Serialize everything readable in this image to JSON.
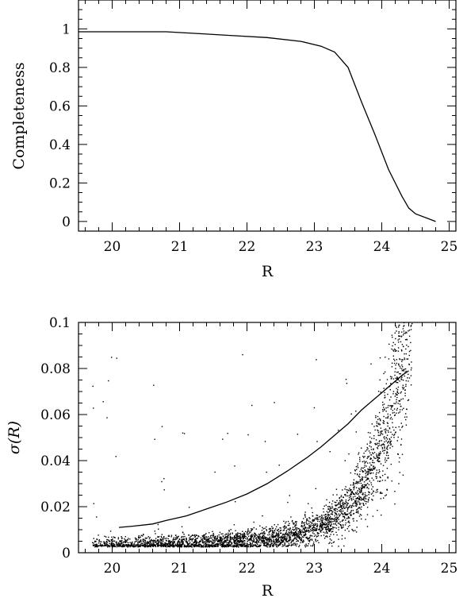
{
  "chart_data": [
    {
      "type": "line",
      "xlabel": "R",
      "ylabel": "Completeness",
      "xlim": [
        19.5,
        25.1
      ],
      "ylim": [
        -0.05,
        1.15
      ],
      "xticks_major": [
        20,
        21,
        22,
        23,
        24,
        25
      ],
      "xtick_labels": [
        "20",
        "21",
        "22",
        "23",
        "24",
        "25"
      ],
      "yticks_major": [
        0,
        0.2,
        0.4,
        0.6,
        0.8,
        1
      ],
      "ytick_labels": [
        "0",
        "0.2",
        "0.4",
        "0.6",
        "0.8",
        "1"
      ],
      "grid": false,
      "series": [
        {
          "x": [
            19.5,
            20.8,
            21.3,
            21.8,
            22.3,
            22.8,
            23.1,
            23.3,
            23.5,
            23.7,
            23.9,
            24.1,
            24.3,
            24.4,
            24.5,
            24.8
          ],
          "y": [
            0.985,
            0.985,
            0.975,
            0.965,
            0.955,
            0.935,
            0.91,
            0.88,
            0.8,
            0.62,
            0.45,
            0.27,
            0.13,
            0.07,
            0.04,
            0.0
          ]
        }
      ]
    },
    {
      "type": "scatter",
      "xlabel": "R",
      "ylabel": "σ(R)",
      "xlim": [
        19.5,
        25.1
      ],
      "ylim": [
        0,
        0.1
      ],
      "xticks_major": [
        20,
        21,
        22,
        23,
        24,
        25
      ],
      "xtick_labels": [
        "20",
        "21",
        "22",
        "23",
        "24",
        "25"
      ],
      "yticks_major": [
        0,
        0.02,
        0.04,
        0.06,
        0.08,
        0.1
      ],
      "ytick_labels": [
        "0",
        "0.02",
        "0.04",
        "0.06",
        "0.08",
        "0.1"
      ],
      "grid": false,
      "trend_line": {
        "x": [
          20.1,
          20.3,
          20.6,
          20.8,
          21.1,
          21.4,
          21.7,
          22.0,
          22.3,
          22.6,
          22.9,
          23.1,
          23.3,
          23.5,
          23.7,
          23.9,
          24.1,
          24.3,
          24.4
        ],
        "y": [
          0.011,
          0.0115,
          0.0125,
          0.014,
          0.016,
          0.019,
          0.022,
          0.0255,
          0.03,
          0.0355,
          0.0415,
          0.046,
          0.051,
          0.056,
          0.062,
          0.067,
          0.072,
          0.077,
          0.079
        ]
      },
      "points_description": "Several thousand scatter points; dense band rising from ~0.003 at R=19.7 to ~0.08 at R=24.4, with sparse outliers above.",
      "points_generator": {
        "count": 3500,
        "x_min": 19.7,
        "x_max": 24.45,
        "base_level": 0.003,
        "outlier_count": 60
      }
    }
  ]
}
